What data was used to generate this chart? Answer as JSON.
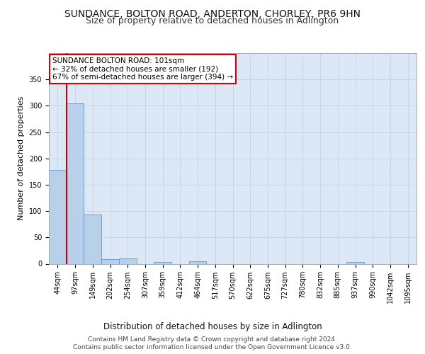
{
  "title1": "SUNDANCE, BOLTON ROAD, ANDERTON, CHORLEY, PR6 9HN",
  "title2": "Size of property relative to detached houses in Adlington",
  "xlabel": "Distribution of detached houses by size in Adlington",
  "ylabel": "Number of detached properties",
  "footer1": "Contains HM Land Registry data © Crown copyright and database right 2024.",
  "footer2": "Contains public sector information licensed under the Open Government Licence v3.0.",
  "annotation_line1": "SUNDANCE BOLTON ROAD: 101sqm",
  "annotation_line2": "← 32% of detached houses are smaller (192)",
  "annotation_line3": "67% of semi-detached houses are larger (394) →",
  "bar_values": [
    178,
    305,
    93,
    9,
    10,
    0,
    4,
    0,
    5,
    0,
    0,
    0,
    0,
    0,
    0,
    0,
    0,
    4,
    0,
    0
  ],
  "bin_labels": [
    "44sqm",
    "97sqm",
    "149sqm",
    "202sqm",
    "254sqm",
    "307sqm",
    "359sqm",
    "412sqm",
    "464sqm",
    "517sqm",
    "570sqm",
    "622sqm",
    "675sqm",
    "727sqm",
    "780sqm",
    "832sqm",
    "885sqm",
    "937sqm",
    "990sqm",
    "1042sqm",
    "1095sqm"
  ],
  "bar_color": "#b8d0ea",
  "bar_edgecolor": "#6496c8",
  "grid_color": "#c8d4e8",
  "background_color": "#dce8f5",
  "vline_color": "#cc0000",
  "annotation_box_color": "#cc0000",
  "ylim": [
    0,
    400
  ],
  "yticks": [
    0,
    50,
    100,
    150,
    200,
    250,
    300,
    350
  ],
  "title1_fontsize": 10,
  "title2_fontsize": 9,
  "xlabel_fontsize": 8.5,
  "ylabel_fontsize": 8,
  "tick_fontsize": 7,
  "annotation_fontsize": 7.5,
  "footer_fontsize": 6.5
}
